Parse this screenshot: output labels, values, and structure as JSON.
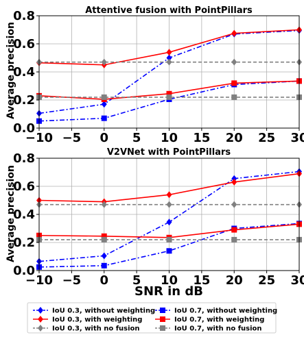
{
  "chart_data": [
    {
      "type": "line",
      "title": "Attentive fusion with PointPillars",
      "ylabel": "Average precision",
      "xlabel": "",
      "x": [
        -10,
        0,
        10,
        20,
        30
      ],
      "xticks": [
        "−10",
        "−5",
        "0",
        "5",
        "10",
        "15",
        "20",
        "25",
        "30"
      ],
      "yticks": [
        "0.0",
        "0.2",
        "0.4",
        "0.6",
        "0.8"
      ],
      "xlim": [
        -10,
        30
      ],
      "ylim": [
        0,
        0.8
      ],
      "grid": true,
      "series": [
        {
          "name": "IoU 0.3, without weighting",
          "values": [
            0.105,
            0.17,
            0.5,
            0.67,
            0.695
          ],
          "color": "#0000ff",
          "dash": "dashdot",
          "marker": "diamond"
        },
        {
          "name": "IoU 0.3, with weighting",
          "values": [
            0.465,
            0.45,
            0.54,
            0.675,
            0.7
          ],
          "color": "#ff0000",
          "dash": "solid",
          "marker": "diamond"
        },
        {
          "name": "IoU 0.3, with no fusion",
          "values": [
            0.47,
            0.47,
            0.47,
            0.47,
            0.47
          ],
          "color": "#808080",
          "dash": "dashed",
          "marker": "diamond"
        },
        {
          "name": "IoU 0.7, without weighting",
          "values": [
            0.05,
            0.07,
            0.205,
            0.31,
            0.335
          ],
          "color": "#0000ff",
          "dash": "dashdot",
          "marker": "square"
        },
        {
          "name": "IoU 0.7, with weighting",
          "values": [
            0.23,
            0.205,
            0.245,
            0.32,
            0.335
          ],
          "color": "#ff0000",
          "dash": "solid",
          "marker": "square"
        },
        {
          "name": "IoU 0.7, with no fusion",
          "values": [
            0.22,
            0.22,
            0.22,
            0.22,
            0.22
          ],
          "color": "#808080",
          "dash": "dashed",
          "marker": "square"
        }
      ]
    },
    {
      "type": "line",
      "title": "V2VNet with PointPillars",
      "ylabel": "Average precision",
      "xlabel": "SNR in dB",
      "x": [
        -10,
        0,
        10,
        20,
        30
      ],
      "xticks": [
        "−10",
        "−5",
        "0",
        "5",
        "10",
        "15",
        "20",
        "25",
        "30"
      ],
      "yticks": [
        "0.0",
        "0.2",
        "0.4",
        "0.6",
        "0.8"
      ],
      "xlim": [
        -10,
        30
      ],
      "ylim": [
        0,
        0.8
      ],
      "grid": true,
      "series": [
        {
          "name": "IoU 0.3, without weighting",
          "values": [
            0.065,
            0.105,
            0.345,
            0.655,
            0.705
          ],
          "color": "#0000ff",
          "dash": "dashdot",
          "marker": "diamond"
        },
        {
          "name": "IoU 0.3, with weighting",
          "values": [
            0.5,
            0.49,
            0.54,
            0.63,
            0.69
          ],
          "color": "#ff0000",
          "dash": "solid",
          "marker": "diamond"
        },
        {
          "name": "IoU 0.3, with no fusion",
          "values": [
            0.47,
            0.47,
            0.47,
            0.47,
            0.47
          ],
          "color": "#808080",
          "dash": "dashed",
          "marker": "diamond"
        },
        {
          "name": "IoU 0.7, without weighting",
          "values": [
            0.025,
            0.035,
            0.14,
            0.3,
            0.335
          ],
          "color": "#0000ff",
          "dash": "dashdot",
          "marker": "square"
        },
        {
          "name": "IoU 0.7, with weighting",
          "values": [
            0.25,
            0.245,
            0.235,
            0.29,
            0.33
          ],
          "color": "#ff0000",
          "dash": "solid",
          "marker": "square"
        },
        {
          "name": "IoU 0.7, with no fusion",
          "values": [
            0.22,
            0.22,
            0.22,
            0.22,
            0.22
          ],
          "color": "#808080",
          "dash": "dashed",
          "marker": "square"
        }
      ]
    }
  ],
  "legend": {
    "placement": "bottom",
    "entries": [
      "IoU 0.3, without weighting",
      "IoU 0.7, without weighting",
      "IoU 0.3, with weighting",
      "IoU 0.7, with weighting",
      "IoU 0.3, with no fusion",
      "IoU 0.7, with no fusion"
    ]
  }
}
